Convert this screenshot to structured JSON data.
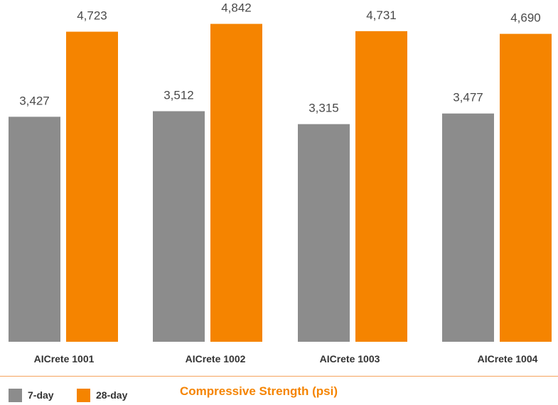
{
  "chart_data": {
    "type": "bar",
    "title": "Compressive Strength (psi)",
    "categories": [
      "AICrete 1001",
      "AICrete 1002",
      "AICrete 1003",
      "AICrete 1004"
    ],
    "series": [
      {
        "name": "7-day",
        "color": "#8c8c8c",
        "values": [
          3427,
          3512,
          3315,
          3477
        ],
        "labels": [
          "3,427",
          "3,512",
          "3,315",
          "3,477"
        ]
      },
      {
        "name": "28-day",
        "color": "#f58400",
        "values": [
          4723,
          4842,
          4731,
          4690
        ],
        "labels": [
          "4,723",
          "4,842",
          "4,731",
          "4,690"
        ]
      }
    ],
    "ylim": [
      0,
      5000
    ],
    "grid": false,
    "legend_position": "bottom-left"
  }
}
